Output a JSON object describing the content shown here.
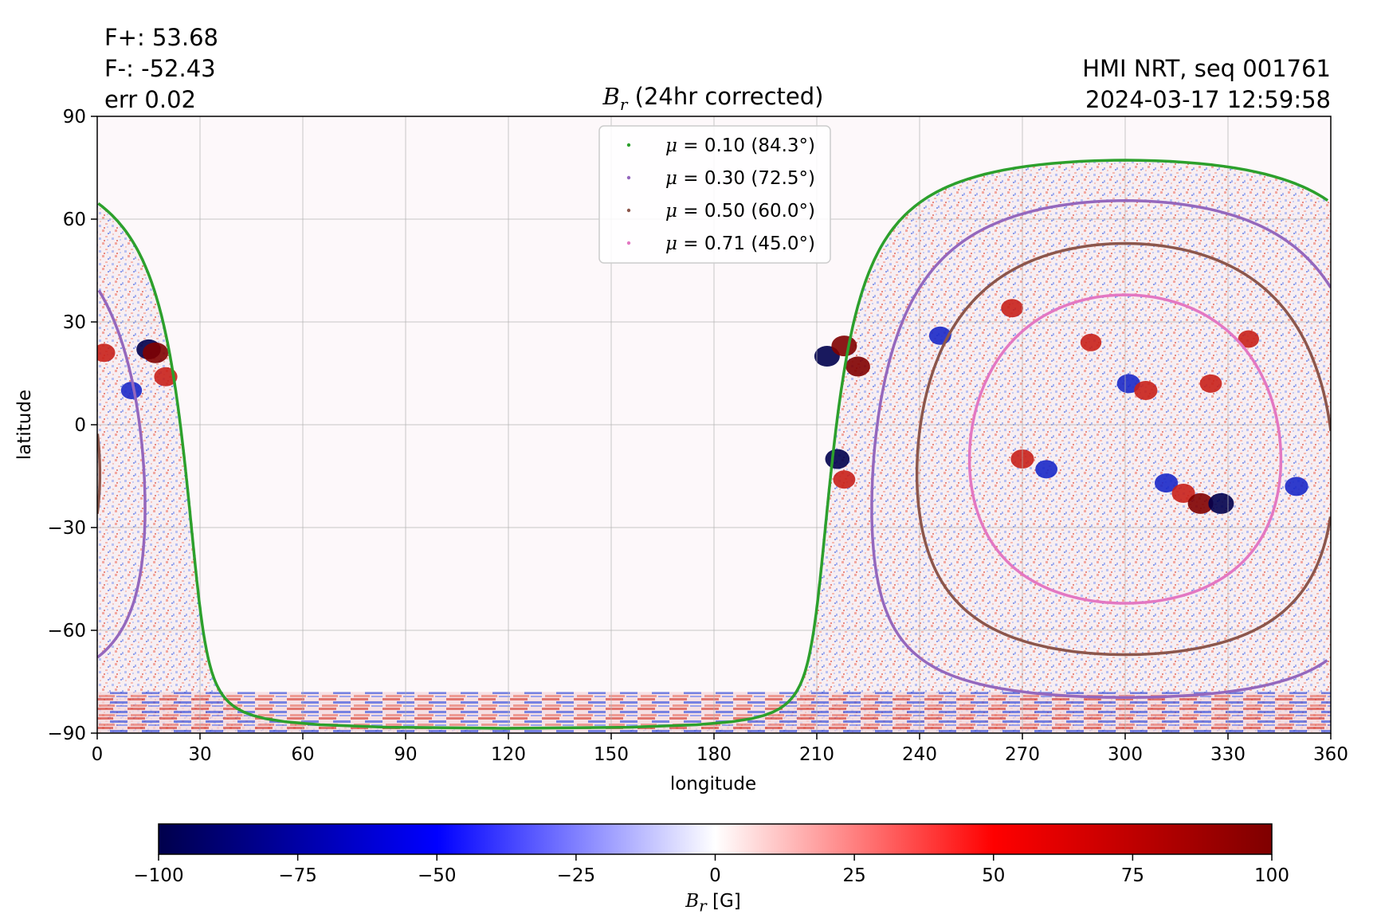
{
  "header": {
    "flux_pos": "F+: 53.68",
    "flux_neg": "F-: -52.43",
    "error": "err 0.02",
    "source": "HMI NRT, seq 001761",
    "timestamp": "2024-03-17 12:59:58"
  },
  "colors": {
    "mu_0_10": "#2ca02c",
    "mu_0_30": "#9467bd",
    "mu_0_50": "#8c564b",
    "mu_0_71": "#e377c2",
    "cmap_neg": "#00004c",
    "cmap_zero": "#ffffff",
    "cmap_pos": "#7f0000"
  },
  "chart_data": {
    "type": "heatmap",
    "title": "B_r (24hr corrected)",
    "title_symbol": "B",
    "title_subscript": "r",
    "title_rest": " (24hr corrected)",
    "xlabel": "longitude",
    "ylabel": "latitude",
    "xlim": [
      0,
      360
    ],
    "ylim": [
      -90,
      90
    ],
    "xticks": [
      0,
      30,
      60,
      90,
      120,
      150,
      180,
      210,
      240,
      270,
      300,
      330,
      360
    ],
    "yticks": [
      90,
      60,
      30,
      0,
      -30,
      -60,
      -90
    ],
    "ytick_labels": [
      "90",
      "60",
      "30",
      "0",
      "−30",
      "−60",
      "−90"
    ],
    "grid": true,
    "legend_position": "top-center",
    "observer_center": {
      "lon": 300,
      "lat": -7.1
    },
    "legend": [
      {
        "mu": "0.10",
        "angle": "(84.3°)",
        "angle_deg": 84.3,
        "color_key": "mu_0_10"
      },
      {
        "mu": "0.30",
        "angle": "(72.5°)",
        "angle_deg": 72.5,
        "color_key": "mu_0_30"
      },
      {
        "mu": "0.50",
        "angle": "(60.0°)",
        "angle_deg": 60.0,
        "color_key": "mu_0_50"
      },
      {
        "mu": "0.71",
        "angle": "(45.0°)",
        "angle_deg": 45.0,
        "color_key": "mu_0_71"
      }
    ],
    "colorbar": {
      "label_symbol": "B",
      "label_subscript": "r",
      "label_unit": " [G]",
      "range": [
        -100,
        100
      ],
      "ticks": [
        -100,
        -75,
        -50,
        -25,
        0,
        25,
        50,
        75,
        100
      ],
      "tick_labels": [
        "−100",
        "−75",
        "−50",
        "−25",
        "0",
        "25",
        "50",
        "75",
        "100"
      ]
    },
    "active_regions": [
      {
        "lon": 213,
        "lat": 20,
        "value": -100
      },
      {
        "lon": 218,
        "lat": 23,
        "value": 100
      },
      {
        "lon": 222,
        "lat": 17,
        "value": 90
      },
      {
        "lon": 216,
        "lat": -10,
        "value": -90
      },
      {
        "lon": 218,
        "lat": -16,
        "value": 70
      },
      {
        "lon": 267,
        "lat": 34,
        "value": 70
      },
      {
        "lon": 290,
        "lat": 24,
        "value": 60
      },
      {
        "lon": 301,
        "lat": 12,
        "value": -80
      },
      {
        "lon": 306,
        "lat": 10,
        "value": 80
      },
      {
        "lon": 325,
        "lat": 12,
        "value": 70
      },
      {
        "lon": 336,
        "lat": 25,
        "value": 60
      },
      {
        "lon": 270,
        "lat": -10,
        "value": 80
      },
      {
        "lon": 277,
        "lat": -13,
        "value": -70
      },
      {
        "lon": 312,
        "lat": -17,
        "value": -80
      },
      {
        "lon": 317,
        "lat": -20,
        "value": 80
      },
      {
        "lon": 322,
        "lat": -23,
        "value": 100
      },
      {
        "lon": 328,
        "lat": -23,
        "value": -100
      },
      {
        "lon": 350,
        "lat": -18,
        "value": -80
      },
      {
        "lon": 246,
        "lat": 26,
        "value": -70
      },
      {
        "lon": 15,
        "lat": 22,
        "value": -90
      },
      {
        "lon": 17,
        "lat": 21,
        "value": 100
      },
      {
        "lon": 20,
        "lat": 14,
        "value": 80
      },
      {
        "lon": 2,
        "lat": 21,
        "value": 70
      },
      {
        "lon": 10,
        "lat": 10,
        "value": -60
      }
    ]
  }
}
